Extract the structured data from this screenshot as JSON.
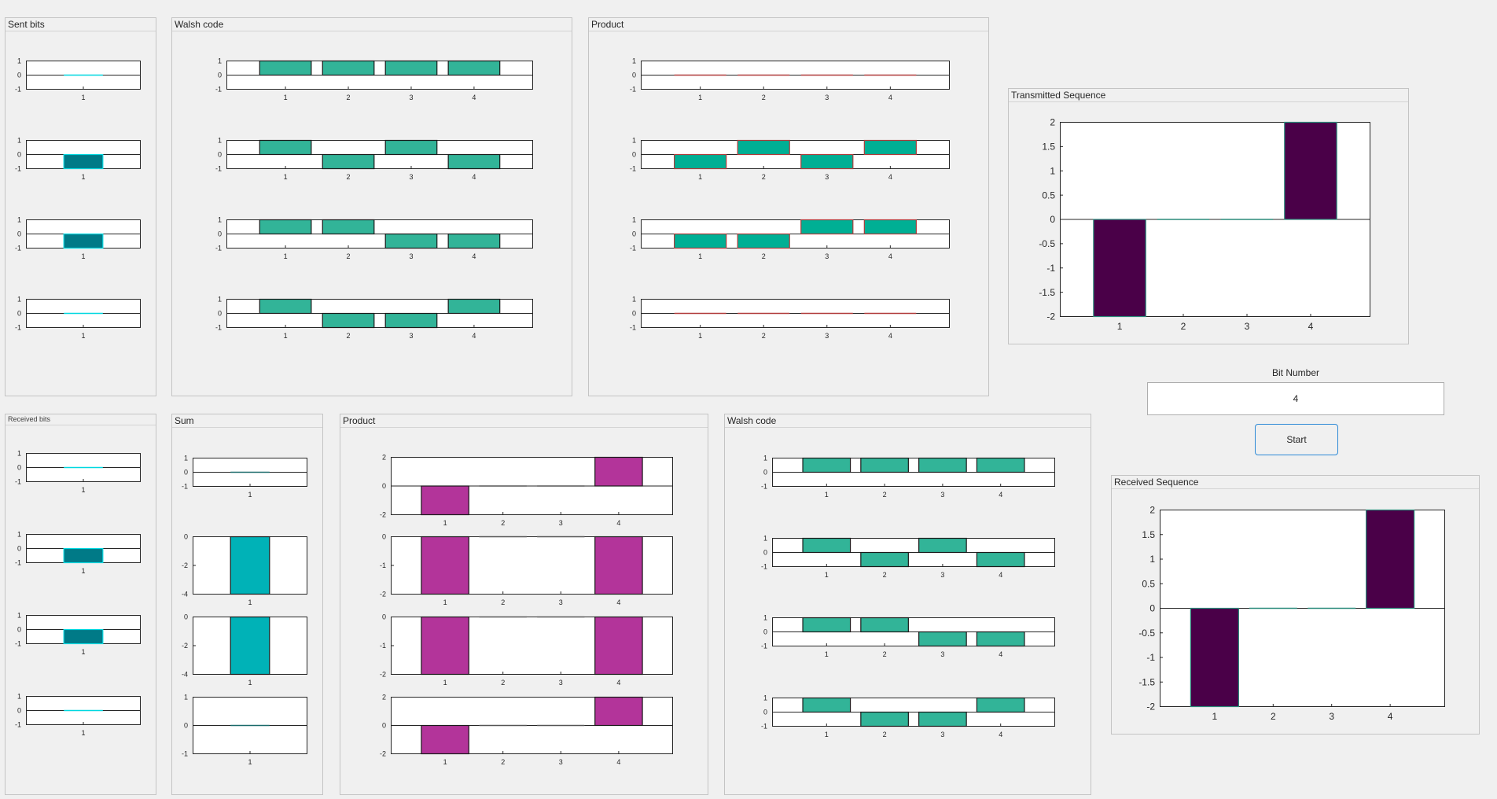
{
  "panels": {
    "sent_bits": "Sent bits",
    "walsh_top": "Walsh code",
    "product_top": "Product",
    "transmitted": "Transmitted Sequence",
    "received_bits": "Received bits",
    "sum": "Sum",
    "product_bottom": "Product",
    "walsh_bottom": "Walsh code",
    "received_seq": "Received Sequence"
  },
  "controls": {
    "bit_number_label": "Bit Number",
    "bit_number_value": "4",
    "start_label": "Start"
  },
  "colors": {
    "walsh": "#32b498",
    "bits_fill": "#007a87",
    "bits_edge": "#00d8e0",
    "product_top": "#00af94",
    "product_top_edge": "#b03a3a",
    "sum_fill": "#00b2b7",
    "product_bottom": "#b3349a",
    "sequence": "#4a0048"
  },
  "chart_data": [
    {
      "id": "sent-bit-1",
      "type": "bar",
      "categories": [
        "1"
      ],
      "values": [
        0
      ],
      "ylim": [
        -1,
        1
      ],
      "yticks": [
        "1",
        "0",
        "-1"
      ]
    },
    {
      "id": "sent-bit-2",
      "type": "bar",
      "categories": [
        "1"
      ],
      "values": [
        -1
      ],
      "ylim": [
        -1,
        1
      ],
      "yticks": [
        "1",
        "0",
        "-1"
      ]
    },
    {
      "id": "sent-bit-3",
      "type": "bar",
      "categories": [
        "1"
      ],
      "values": [
        -1
      ],
      "ylim": [
        -1,
        1
      ],
      "yticks": [
        "1",
        "0",
        "-1"
      ]
    },
    {
      "id": "sent-bit-4",
      "type": "bar",
      "categories": [
        "1"
      ],
      "values": [
        0
      ],
      "ylim": [
        -1,
        1
      ],
      "yticks": [
        "1",
        "0",
        "-1"
      ]
    },
    {
      "id": "walsh-top-1",
      "type": "bar",
      "categories": [
        "1",
        "2",
        "3",
        "4"
      ],
      "values": [
        1,
        1,
        1,
        1
      ],
      "ylim": [
        -1,
        1
      ],
      "yticks": [
        "1",
        "0",
        "-1"
      ]
    },
    {
      "id": "walsh-top-2",
      "type": "bar",
      "categories": [
        "1",
        "2",
        "3",
        "4"
      ],
      "values": [
        1,
        -1,
        1,
        -1
      ],
      "ylim": [
        -1,
        1
      ],
      "yticks": [
        "1",
        "0",
        "-1"
      ]
    },
    {
      "id": "walsh-top-3",
      "type": "bar",
      "categories": [
        "1",
        "2",
        "3",
        "4"
      ],
      "values": [
        1,
        1,
        -1,
        -1
      ],
      "ylim": [
        -1,
        1
      ],
      "yticks": [
        "1",
        "0",
        "-1"
      ]
    },
    {
      "id": "walsh-top-4",
      "type": "bar",
      "categories": [
        "1",
        "2",
        "3",
        "4"
      ],
      "values": [
        1,
        -1,
        -1,
        1
      ],
      "ylim": [
        -1,
        1
      ],
      "yticks": [
        "1",
        "0",
        "-1"
      ]
    },
    {
      "id": "product-top-1",
      "type": "bar",
      "categories": [
        "1",
        "2",
        "3",
        "4"
      ],
      "values": [
        0,
        0,
        0,
        0
      ],
      "ylim": [
        -1,
        1
      ],
      "yticks": [
        "1",
        "0",
        "-1"
      ]
    },
    {
      "id": "product-top-2",
      "type": "bar",
      "categories": [
        "1",
        "2",
        "3",
        "4"
      ],
      "values": [
        -1,
        1,
        -1,
        1
      ],
      "ylim": [
        -1,
        1
      ],
      "yticks": [
        "1",
        "0",
        "-1"
      ]
    },
    {
      "id": "product-top-3",
      "type": "bar",
      "categories": [
        "1",
        "2",
        "3",
        "4"
      ],
      "values": [
        -1,
        -1,
        1,
        1
      ],
      "ylim": [
        -1,
        1
      ],
      "yticks": [
        "1",
        "0",
        "-1"
      ]
    },
    {
      "id": "product-top-4",
      "type": "bar",
      "categories": [
        "1",
        "2",
        "3",
        "4"
      ],
      "values": [
        0,
        0,
        0,
        0
      ],
      "ylim": [
        -1,
        1
      ],
      "yticks": [
        "1",
        "0",
        "-1"
      ]
    },
    {
      "id": "transmitted-sequence",
      "type": "bar",
      "categories": [
        "1",
        "2",
        "3",
        "4"
      ],
      "values": [
        -2,
        0,
        0,
        2
      ],
      "ylim": [
        -2,
        2
      ],
      "yticks": [
        "2",
        "1.5",
        "1",
        "0.5",
        "0",
        "-0.5",
        "-1",
        "-1.5",
        "-2"
      ]
    },
    {
      "id": "received-bit-1",
      "type": "bar",
      "categories": [
        "1"
      ],
      "values": [
        0
      ],
      "ylim": [
        -1,
        1
      ],
      "yticks": [
        "1",
        "0",
        "-1"
      ]
    },
    {
      "id": "received-bit-2",
      "type": "bar",
      "categories": [
        "1"
      ],
      "values": [
        -1
      ],
      "ylim": [
        -1,
        1
      ],
      "yticks": [
        "1",
        "0",
        "-1"
      ]
    },
    {
      "id": "received-bit-3",
      "type": "bar",
      "categories": [
        "1"
      ],
      "values": [
        -1
      ],
      "ylim": [
        -1,
        1
      ],
      "yticks": [
        "1",
        "0",
        "-1"
      ]
    },
    {
      "id": "received-bit-4",
      "type": "bar",
      "categories": [
        "1"
      ],
      "values": [
        0
      ],
      "ylim": [
        -1,
        1
      ],
      "yticks": [
        "1",
        "0",
        "-1"
      ]
    },
    {
      "id": "sum-1",
      "type": "bar",
      "categories": [
        "1"
      ],
      "values": [
        0
      ],
      "ylim": [
        -1,
        1
      ],
      "yticks": [
        "1",
        "0",
        "-1"
      ]
    },
    {
      "id": "sum-2",
      "type": "bar",
      "categories": [
        "1"
      ],
      "values": [
        -4
      ],
      "ylim": [
        -4,
        0
      ],
      "yticks": [
        "0",
        "-2",
        "-4"
      ]
    },
    {
      "id": "sum-3",
      "type": "bar",
      "categories": [
        "1"
      ],
      "values": [
        -4
      ],
      "ylim": [
        -4,
        0
      ],
      "yticks": [
        "0",
        "-2",
        "-4"
      ]
    },
    {
      "id": "sum-4",
      "type": "bar",
      "categories": [
        "1"
      ],
      "values": [
        0
      ],
      "ylim": [
        -1,
        1
      ],
      "yticks": [
        "1",
        "0",
        "-1"
      ]
    },
    {
      "id": "product-bottom-1",
      "type": "bar",
      "categories": [
        "1",
        "2",
        "3",
        "4"
      ],
      "values": [
        -2,
        0,
        0,
        2
      ],
      "ylim": [
        -2,
        2
      ],
      "yticks": [
        "2",
        "0",
        "-2"
      ]
    },
    {
      "id": "product-bottom-2",
      "type": "bar",
      "categories": [
        "1",
        "2",
        "3",
        "4"
      ],
      "values": [
        -2,
        0,
        0,
        -2
      ],
      "ylim": [
        -2,
        0
      ],
      "yticks": [
        "0",
        "-1",
        "-2"
      ]
    },
    {
      "id": "product-bottom-3",
      "type": "bar",
      "categories": [
        "1",
        "2",
        "3",
        "4"
      ],
      "values": [
        -2,
        0,
        0,
        -2
      ],
      "ylim": [
        -2,
        0
      ],
      "yticks": [
        "0",
        "-1",
        "-2"
      ]
    },
    {
      "id": "product-bottom-4",
      "type": "bar",
      "categories": [
        "1",
        "2",
        "3",
        "4"
      ],
      "values": [
        -2,
        0,
        0,
        2
      ],
      "ylim": [
        -2,
        2
      ],
      "yticks": [
        "2",
        "0",
        "-2"
      ]
    },
    {
      "id": "walsh-bottom-1",
      "type": "bar",
      "categories": [
        "1",
        "2",
        "3",
        "4"
      ],
      "values": [
        1,
        1,
        1,
        1
      ],
      "ylim": [
        -1,
        1
      ],
      "yticks": [
        "1",
        "0",
        "-1"
      ]
    },
    {
      "id": "walsh-bottom-2",
      "type": "bar",
      "categories": [
        "1",
        "2",
        "3",
        "4"
      ],
      "values": [
        1,
        -1,
        1,
        -1
      ],
      "ylim": [
        -1,
        1
      ],
      "yticks": [
        "1",
        "0",
        "-1"
      ]
    },
    {
      "id": "walsh-bottom-3",
      "type": "bar",
      "categories": [
        "1",
        "2",
        "3",
        "4"
      ],
      "values": [
        1,
        1,
        -1,
        -1
      ],
      "ylim": [
        -1,
        1
      ],
      "yticks": [
        "1",
        "0",
        "-1"
      ]
    },
    {
      "id": "walsh-bottom-4",
      "type": "bar",
      "categories": [
        "1",
        "2",
        "3",
        "4"
      ],
      "values": [
        1,
        -1,
        -1,
        1
      ],
      "ylim": [
        -1,
        1
      ],
      "yticks": [
        "1",
        "0",
        "-1"
      ]
    },
    {
      "id": "received-sequence",
      "type": "bar",
      "categories": [
        "1",
        "2",
        "3",
        "4"
      ],
      "values": [
        -2,
        0,
        0,
        2
      ],
      "ylim": [
        -2,
        2
      ],
      "yticks": [
        "2",
        "1.5",
        "1",
        "0.5",
        "0",
        "-0.5",
        "-1",
        "-1.5",
        "-2"
      ]
    }
  ]
}
